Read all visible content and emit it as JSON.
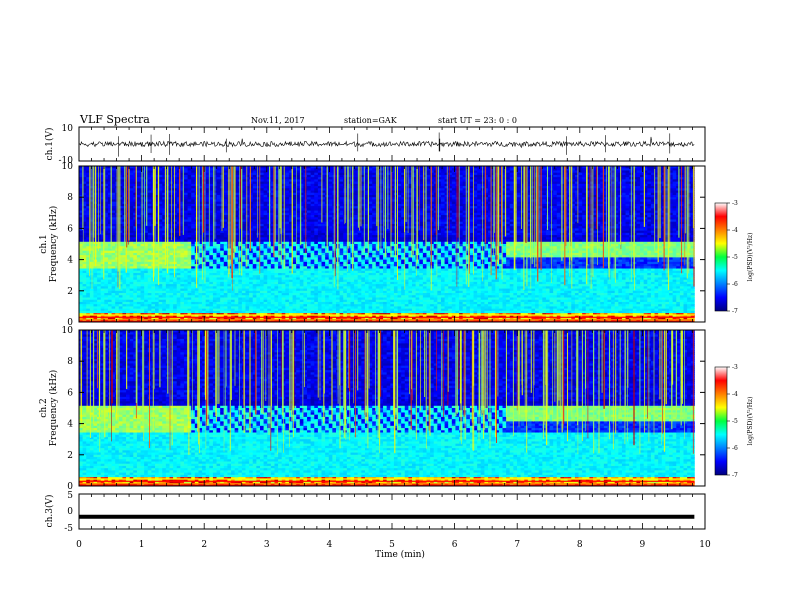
{
  "header": {
    "title": "VLF Spectra",
    "date": "Nov.11, 2017",
    "station": "station=GAK",
    "start": "start  UT  =   23: 0  : 0"
  },
  "chart_data": [
    {
      "type": "line",
      "panel": "ch1-waveform",
      "ylabel": "ch.1(V)",
      "ylim": [
        -10,
        10
      ],
      "yticks": [
        "10",
        "-10"
      ],
      "xlim": [
        0,
        10
      ],
      "baseline": 0,
      "noise_amplitude": 1.5,
      "data_end_min": 9.83
    },
    {
      "type": "heatmap",
      "panel": "ch1-spectrogram",
      "ylabel_top": "ch.1",
      "ylabel": "Frequency (kHz)",
      "ylim": [
        0,
        10
      ],
      "yticks": [
        "0",
        "2",
        "4",
        "6",
        "8",
        "10"
      ],
      "xlim": [
        0,
        10
      ],
      "data_end_min": 9.83,
      "colorbar": {
        "label": "log(PSD)(V²/Hz)",
        "range": [
          -7,
          -3
        ],
        "ticks": [
          "-3",
          "-4",
          "-5",
          "-6",
          "-7"
        ]
      }
    },
    {
      "type": "heatmap",
      "panel": "ch2-spectrogram",
      "ylabel_top": "ch.2",
      "ylabel": "Frequency (kHz)",
      "ylim": [
        0,
        10
      ],
      "yticks": [
        "0",
        "2",
        "4",
        "6",
        "8",
        "10"
      ],
      "xlim": [
        0,
        10
      ],
      "data_end_min": 9.83,
      "colorbar": {
        "label": "log(PSD)(V²/Hz)",
        "range": [
          -7,
          -3
        ],
        "ticks": [
          "-3",
          "-4",
          "-5",
          "-6",
          "-7"
        ]
      }
    },
    {
      "type": "line",
      "panel": "ch3-waveform",
      "ylabel": "ch.3(V)",
      "ylim": [
        -5,
        5
      ],
      "yticks": [
        "5",
        "0",
        "-5"
      ],
      "xlim": [
        0,
        10
      ],
      "baseline": -1.5,
      "data_end_min": 9.83
    }
  ],
  "xaxis": {
    "label": "Time (min)",
    "ticks": [
      "0",
      "1",
      "2",
      "3",
      "4",
      "5",
      "6",
      "7",
      "8",
      "9",
      "10"
    ]
  }
}
